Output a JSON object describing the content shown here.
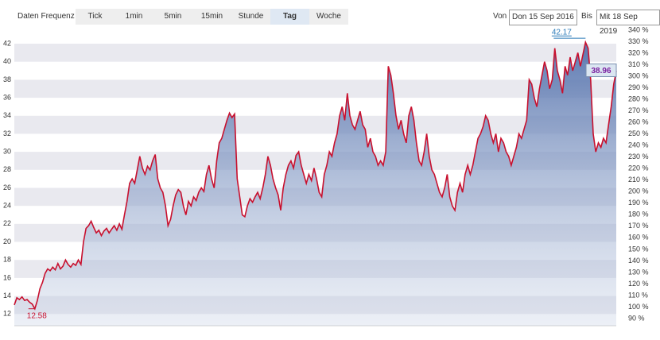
{
  "toolbar": {
    "label": "Daten Frequenz",
    "buttons": [
      "Tick",
      "1min",
      "5min",
      "15min",
      "Stunde",
      "Tag",
      "Woche"
    ],
    "active_button": "Tag"
  },
  "range": {
    "from_label": "Von",
    "from": "Don 15 Sep 2016",
    "to_label": "Bis",
    "to": "Mit 18 Sep 2019"
  },
  "chart_data": {
    "type": "area",
    "color": "#c8102e",
    "grid": true,
    "series": [
      {
        "values": [
          13.0,
          13.8,
          13.6,
          13.9,
          13.5,
          13.6,
          13.3,
          13.1,
          12.58,
          13.5,
          14.8,
          15.5,
          16.5,
          17.0,
          16.8,
          17.2,
          16.9,
          17.6,
          17.0,
          17.3,
          18.0,
          17.5,
          17.2,
          17.6,
          17.4,
          18.0,
          17.5,
          20.0,
          21.5,
          21.8,
          22.3,
          21.6,
          21.0,
          21.3,
          20.7,
          21.2,
          21.5,
          21.0,
          21.4,
          21.8,
          21.3,
          22.0,
          21.4,
          23.0,
          24.5,
          26.5,
          27.0,
          26.5,
          28.0,
          29.5,
          28.2,
          27.5,
          28.4,
          28.0,
          29.0,
          29.7,
          27.0,
          26.0,
          25.5,
          24.0,
          21.8,
          22.5,
          24.0,
          25.2,
          25.8,
          25.5,
          24.0,
          23.0,
          24.5,
          24.0,
          25.0,
          24.6,
          25.5,
          26.0,
          25.6,
          27.5,
          28.5,
          27.0,
          26.0,
          29.0,
          31.0,
          31.5,
          32.5,
          33.5,
          34.3,
          33.8,
          34.2,
          27.0,
          25.0,
          23.0,
          22.8,
          24.0,
          24.8,
          24.4,
          25.0,
          25.5,
          24.8,
          26.0,
          27.5,
          29.5,
          28.5,
          27.0,
          26.0,
          25.2,
          23.5,
          26.0,
          27.5,
          28.5,
          29.0,
          28.2,
          29.6,
          30.0,
          28.5,
          27.5,
          26.5,
          27.5,
          26.8,
          28.2,
          27.0,
          25.5,
          25.0,
          27.5,
          28.5,
          30.0,
          29.5,
          31.0,
          32.0,
          34.0,
          35.0,
          33.5,
          36.5,
          34.0,
          33.0,
          32.5,
          33.5,
          34.5,
          33.0,
          32.5,
          30.5,
          31.5,
          30.0,
          29.5,
          28.5,
          29.0,
          28.5,
          30.0,
          39.5,
          38.5,
          36.5,
          34.0,
          32.5,
          33.5,
          32.0,
          31.0,
          34.0,
          35.0,
          33.5,
          31.0,
          29.0,
          28.5,
          30.0,
          32.0,
          29.5,
          28.0,
          27.5,
          26.5,
          25.5,
          25.0,
          26.0,
          27.5,
          25.0,
          24.0,
          23.5,
          25.5,
          26.5,
          25.5,
          27.5,
          28.5,
          27.5,
          28.5,
          30.0,
          31.5,
          32.0,
          32.8,
          34.0,
          33.5,
          32.0,
          31.0,
          32.0,
          30.0,
          31.5,
          31.0,
          30.0,
          29.5,
          28.5,
          29.5,
          30.5,
          32.0,
          31.5,
          32.5,
          33.5,
          38.0,
          37.5,
          36.0,
          35.0,
          37.0,
          38.5,
          40.0,
          39.0,
          37.0,
          38.0,
          41.5,
          39.0,
          38.0,
          36.5,
          39.5,
          38.5,
          40.5,
          39.0,
          40.0,
          41.0,
          39.5,
          40.8,
          42.17,
          41.5,
          38.0,
          32.0,
          30.0,
          31.0,
          30.5,
          31.5,
          31.0,
          33.0,
          35.0,
          37.5,
          38.96
        ]
      }
    ],
    "annotations": [
      42.17,
      12.58,
      38.96
    ],
    "ylim": [
      10.7,
      43.5
    ],
    "yticks": [
      12,
      14,
      16,
      18,
      20,
      22,
      24,
      26,
      28,
      30,
      32,
      34,
      36,
      38,
      40,
      42
    ],
    "y2lim": [
      83.8,
      340
    ],
    "y2ticks": [
      {
        "value": 90,
        "label": "90 %"
      },
      {
        "value": 100,
        "label": "100 %"
      },
      {
        "value": 110,
        "label": "110 %"
      },
      {
        "value": 120,
        "label": "120 %"
      },
      {
        "value": 130,
        "label": "130 %"
      },
      {
        "value": 140,
        "label": "140 %"
      },
      {
        "value": 150,
        "label": "150 %"
      },
      {
        "value": 160,
        "label": "160 %"
      },
      {
        "value": 170,
        "label": "170 %"
      },
      {
        "value": 180,
        "label": "180 %"
      },
      {
        "value": 190,
        "label": "190 %"
      },
      {
        "value": 200,
        "label": "200 %"
      },
      {
        "value": 210,
        "label": "210 %"
      },
      {
        "value": 220,
        "label": "220 %"
      },
      {
        "value": 230,
        "label": "230 %"
      },
      {
        "value": 240,
        "label": "240 %"
      },
      {
        "value": 250,
        "label": "250 %"
      },
      {
        "value": 260,
        "label": "260 %"
      },
      {
        "value": 270,
        "label": "270 %"
      },
      {
        "value": 280,
        "label": "280 %"
      },
      {
        "value": 290,
        "label": "290 %"
      },
      {
        "value": 300,
        "label": "300 %"
      },
      {
        "value": 310,
        "label": "310 %"
      },
      {
        "value": 320,
        "label": "320 %"
      },
      {
        "value": 330,
        "label": "330 %"
      },
      {
        "value": 340,
        "label": "340 %"
      }
    ]
  }
}
